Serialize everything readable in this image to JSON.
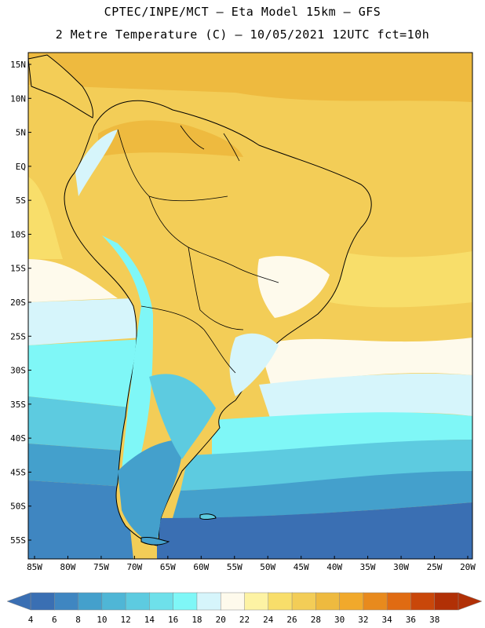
{
  "header": {
    "line1": "CPTEC/INPE/MCT –  Eta Model 15km – GFS",
    "line2": "2 Metre Temperature (C) – 10/05/2021 12UTC fct=10h"
  },
  "map": {
    "lat_labels": [
      "15N",
      "10N",
      "5N",
      "EQ",
      "5S",
      "10S",
      "15S",
      "20S",
      "25S",
      "30S",
      "35S",
      "40S",
      "45S",
      "50S",
      "55S"
    ],
    "lon_labels": [
      "85W",
      "80W",
      "75W",
      "70W",
      "65W",
      "60W",
      "55W",
      "50W",
      "45W",
      "40W",
      "35W",
      "30W",
      "25W",
      "20W"
    ]
  },
  "colorbar": {
    "ticks": [
      "4",
      "6",
      "8",
      "10",
      "12",
      "14",
      "16",
      "18",
      "20",
      "22",
      "24",
      "26",
      "28",
      "30",
      "32",
      "34",
      "36",
      "38"
    ],
    "colors": [
      "#3a6fb3",
      "#3f86c1",
      "#44a0cc",
      "#4fb6d6",
      "#5dcbe0",
      "#6ee0ea",
      "#7ff7f7",
      "#d6f5fb",
      "#fefaec",
      "#fdf3a4",
      "#f8de6a",
      "#f3cd57",
      "#eeba3f",
      "#f1a92b",
      "#e88a1d",
      "#e06b12",
      "#c9470a",
      "#b13006"
    ]
  }
}
